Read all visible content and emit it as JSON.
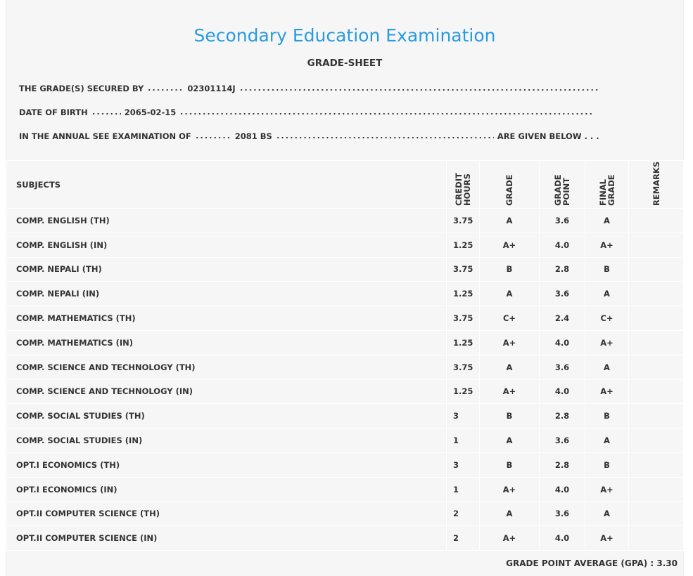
{
  "header": {
    "title": "Secondary Education Examination",
    "subtitle": "GRADE-SHEET"
  },
  "info": [
    {
      "label": "THE GRADE(S) SECURED BY",
      "value": "02301114J"
    },
    {
      "label": "DATE OF BIRTH",
      "value": "2065-02-15"
    },
    {
      "label": "IN THE ANNUAL SEE EXAMINATION OF",
      "value": "2081 BS",
      "suffix": "ARE GIVEN BELOW . . ."
    }
  ],
  "table": {
    "columns": [
      "SUBJECTS",
      "CREDIT HOURS",
      "GRADE",
      "GRADE POINT",
      "FINAL GRADE",
      "REMARKS"
    ],
    "rows": [
      [
        "COMP. ENGLISH (TH)",
        "3.75",
        "A",
        "3.6",
        "A"
      ],
      [
        "COMP. ENGLISH (IN)",
        "1.25",
        "A+",
        "4.0",
        "A+"
      ],
      [
        "COMP. NEPALI (TH)",
        "3.75",
        "B",
        "2.8",
        "B"
      ],
      [
        "COMP. NEPALI (IN)",
        "1.25",
        "A",
        "3.6",
        "A"
      ],
      [
        "COMP. MATHEMATICS (TH)",
        "3.75",
        "C+",
        "2.4",
        "C+"
      ],
      [
        "COMP. MATHEMATICS (IN)",
        "1.25",
        "A+",
        "4.0",
        "A+"
      ],
      [
        "COMP. SCIENCE AND TECHNOLOGY (TH)",
        "3.75",
        "A",
        "3.6",
        "A"
      ],
      [
        "COMP. SCIENCE AND TECHNOLOGY (IN)",
        "1.25",
        "A+",
        "4.0",
        "A+"
      ],
      [
        "COMP. SOCIAL STUDIES (TH)",
        "3",
        "B",
        "2.8",
        "B"
      ],
      [
        "COMP. SOCIAL STUDIES (IN)",
        "1",
        "A",
        "3.6",
        "A"
      ],
      [
        "OPT.I ECONOMICS (TH)",
        "3",
        "B",
        "2.8",
        "B"
      ],
      [
        "OPT.I ECONOMICS (IN)",
        "1",
        "A+",
        "4.0",
        "A+"
      ],
      [
        "OPT.II COMPUTER SCIENCE (TH)",
        "2",
        "A",
        "3.6",
        "A"
      ],
      [
        "OPT.II COMPUTER SCIENCE (IN)",
        "2",
        "A+",
        "4.0",
        "A+"
      ]
    ]
  },
  "footer": {
    "label": "GRADE POINT AVERAGE (GPA) :",
    "value": "3.30"
  }
}
